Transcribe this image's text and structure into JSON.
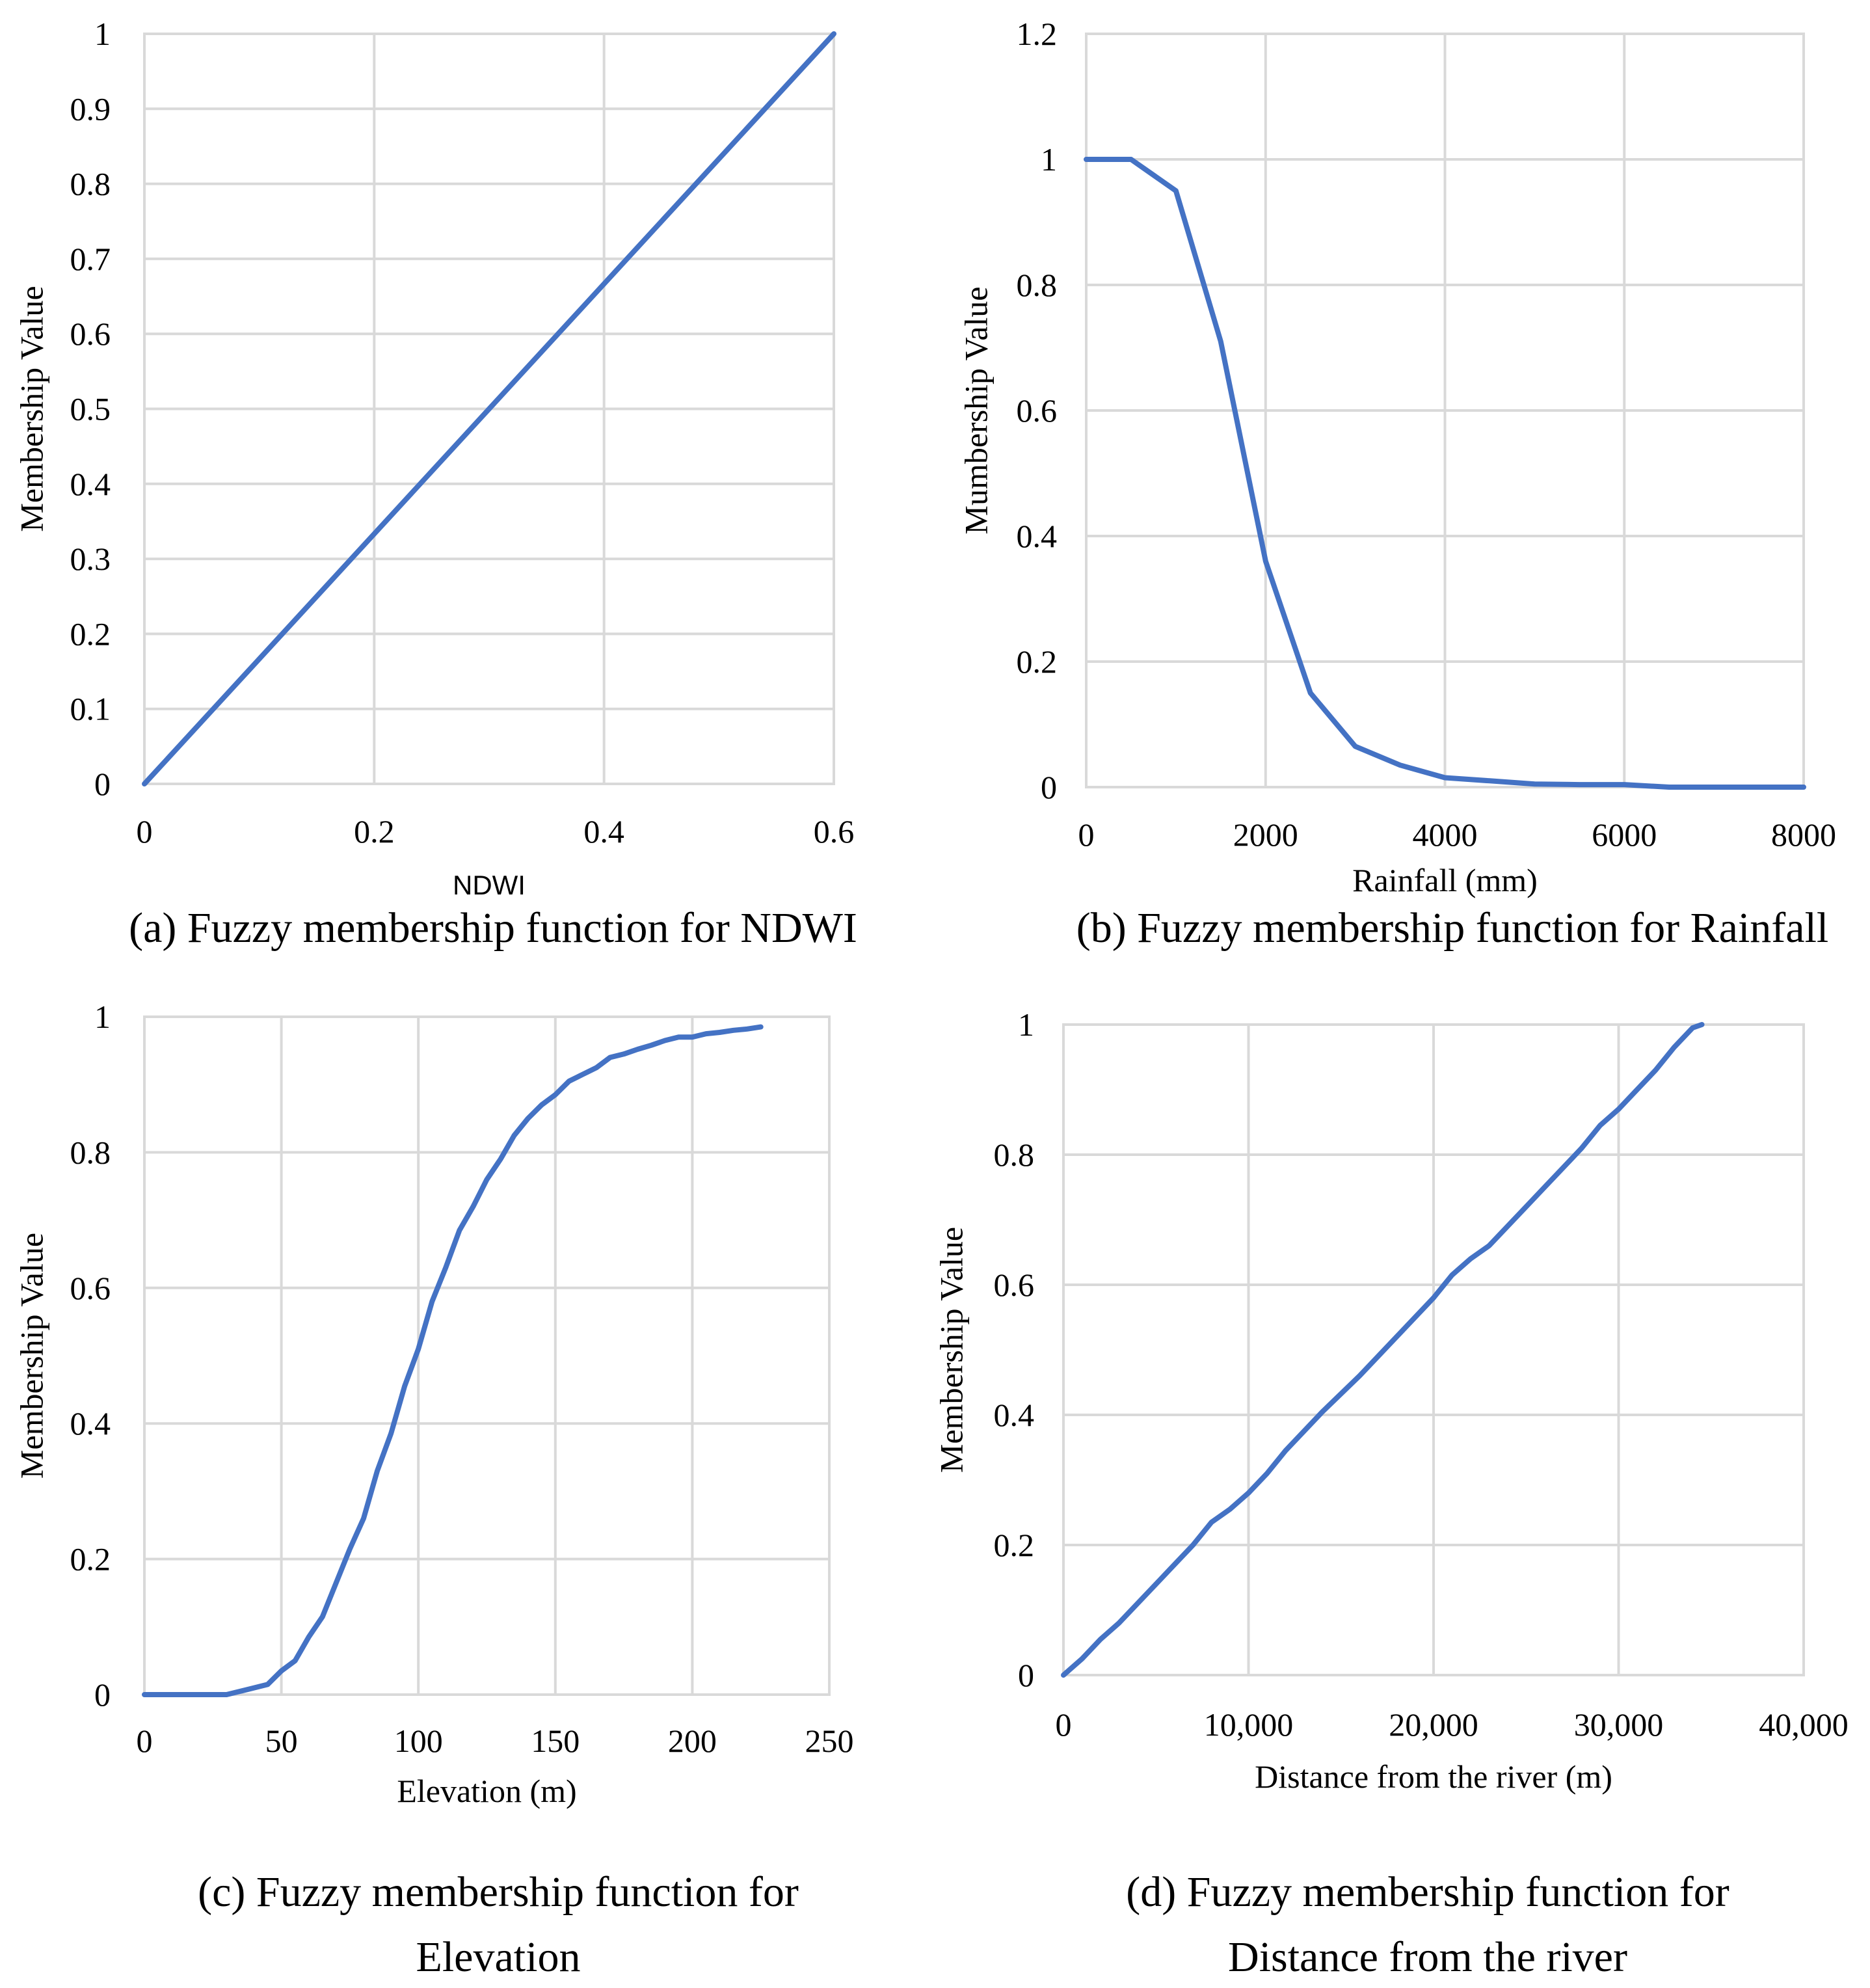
{
  "chart_data": [
    {
      "id": "a",
      "type": "line",
      "caption": [
        "(a) Fuzzy membership function for NDWI"
      ],
      "xlabel": "NDWI",
      "ylabel": "Membership Value",
      "xlim": [
        0,
        0.6
      ],
      "ylim": [
        0,
        1
      ],
      "xticks": [
        0,
        0.2,
        0.4,
        0.6
      ],
      "xtick_labels": [
        "0",
        "0.2",
        "0.4",
        "0.6"
      ],
      "yticks": [
        0,
        0.1,
        0.2,
        0.3,
        0.4,
        0.5,
        0.6,
        0.7,
        0.8,
        0.9,
        1
      ],
      "ytick_labels": [
        "0",
        "0.1",
        "0.2",
        "0.3",
        "0.4",
        "0.5",
        "0.6",
        "0.7",
        "0.8",
        "0.9",
        "1"
      ],
      "grid": true,
      "series": [
        {
          "name": "Membership",
          "color": "#4472c4",
          "x": [
            0,
            0.6
          ],
          "y": [
            0,
            1
          ]
        }
      ]
    },
    {
      "id": "b",
      "type": "line",
      "caption": [
        "(b) Fuzzy membership function for Rainfall"
      ],
      "xlabel": "Rainfall (mm)",
      "ylabel": "Mumbership Value",
      "xlim": [
        0,
        8000
      ],
      "ylim": [
        0,
        1.2
      ],
      "xticks": [
        0,
        2000,
        4000,
        6000,
        8000
      ],
      "xtick_labels": [
        "0",
        "2000",
        "4000",
        "6000",
        "8000"
      ],
      "yticks": [
        0,
        0.2,
        0.4,
        0.6,
        0.8,
        1,
        1.2
      ],
      "ytick_labels": [
        "0",
        "0.2",
        "0.4",
        "0.6",
        "0.8",
        "1",
        "1.2"
      ],
      "grid": true,
      "series": [
        {
          "name": "Membership",
          "color": "#4472c4",
          "x": [
            0,
            500,
            1000,
            1500,
            2000,
            2500,
            3000,
            3500,
            4000,
            4500,
            5000,
            5500,
            6000,
            6500,
            7000,
            7500,
            8000
          ],
          "y": [
            1,
            1,
            0.95,
            0.71,
            0.36,
            0.15,
            0.065,
            0.035,
            0.015,
            0.01,
            0.005,
            0.004,
            0.004,
            0.0,
            0.0,
            0.0,
            0.0
          ]
        }
      ]
    },
    {
      "id": "c",
      "type": "line",
      "caption": [
        "(c) Fuzzy membership function for",
        "Elevation"
      ],
      "xlabel": "Elevation (m)",
      "ylabel": "Membership Value",
      "xlim": [
        0,
        250
      ],
      "ylim": [
        0,
        1
      ],
      "xticks": [
        0,
        50,
        100,
        150,
        200,
        250
      ],
      "xtick_labels": [
        "0",
        "50",
        "100",
        "150",
        "200",
        "250"
      ],
      "yticks": [
        0,
        0.2,
        0.4,
        0.6,
        0.8,
        1
      ],
      "ytick_labels": [
        "0",
        "0.2",
        "0.4",
        "0.6",
        "0.8",
        "1"
      ],
      "grid": true,
      "series": [
        {
          "name": "Membership",
          "color": "#4472c4",
          "x": [
            0,
            10,
            20,
            30,
            40,
            45,
            50,
            55,
            60,
            65,
            70,
            75,
            80,
            85,
            90,
            95,
            100,
            105,
            110,
            115,
            120,
            125,
            130,
            135,
            140,
            145,
            150,
            155,
            160,
            165,
            170,
            175,
            180,
            185,
            190,
            195,
            200,
            205,
            210,
            215,
            220,
            225
          ],
          "y": [
            0,
            0,
            0,
            0,
            0.01,
            0.015,
            0.035,
            0.05,
            0.085,
            0.115,
            0.165,
            0.215,
            0.26,
            0.33,
            0.385,
            0.455,
            0.51,
            0.58,
            0.63,
            0.685,
            0.72,
            0.76,
            0.79,
            0.825,
            0.85,
            0.87,
            0.885,
            0.905,
            0.915,
            0.925,
            0.94,
            0.945,
            0.952,
            0.958,
            0.965,
            0.97,
            0.97,
            0.975,
            0.977,
            0.98,
            0.982,
            0.985
          ]
        }
      ]
    },
    {
      "id": "d",
      "type": "line",
      "caption": [
        "(d) Fuzzy membership function for",
        "Distance from the river"
      ],
      "xlabel": "Distance from the river (m)",
      "ylabel": "Membership Value",
      "xlim": [
        0,
        40000
      ],
      "ylim": [
        0,
        1
      ],
      "xticks": [
        0,
        10000,
        20000,
        30000,
        40000
      ],
      "xtick_labels": [
        "0",
        "10,000",
        "20,000",
        "30,000",
        "40,000"
      ],
      "yticks": [
        0,
        0.2,
        0.4,
        0.6,
        0.8,
        1
      ],
      "ytick_labels": [
        "0",
        "0.2",
        "0.4",
        "0.6",
        "0.8",
        "1"
      ],
      "grid": true,
      "series": [
        {
          "name": "Membership",
          "color": "#4472c4",
          "x": [
            0,
            1000,
            2000,
            3000,
            4000,
            5000,
            6000,
            7000,
            8000,
            9000,
            10000,
            11000,
            12000,
            14000,
            16000,
            18000,
            20000,
            21000,
            22000,
            23000,
            24000,
            25000,
            26000,
            27000,
            28000,
            29000,
            30000,
            31000,
            32000,
            33000,
            34000,
            34500
          ],
          "y": [
            0,
            0.025,
            0.055,
            0.08,
            0.11,
            0.14,
            0.17,
            0.2,
            0.235,
            0.255,
            0.28,
            0.31,
            0.345,
            0.405,
            0.46,
            0.52,
            0.58,
            0.615,
            0.64,
            0.66,
            0.69,
            0.72,
            0.75,
            0.78,
            0.81,
            0.845,
            0.87,
            0.9,
            0.93,
            0.965,
            0.995,
            1.0
          ]
        }
      ]
    }
  ]
}
